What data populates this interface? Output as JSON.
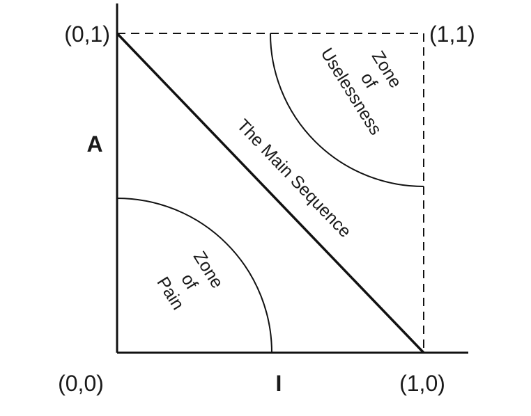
{
  "corners": {
    "top_left": "(0,1)",
    "top_right": "(1,1)",
    "bottom_left": "(0,0)",
    "bottom_right": "(1,0)"
  },
  "axes": {
    "y": "A",
    "x": "I"
  },
  "main_sequence": "The Main Sequence",
  "zones": [
    {
      "lines": [
        "Zone",
        "of",
        "Uselessness"
      ]
    },
    {
      "lines": [
        "Zone",
        "of",
        "Pain"
      ]
    }
  ]
}
